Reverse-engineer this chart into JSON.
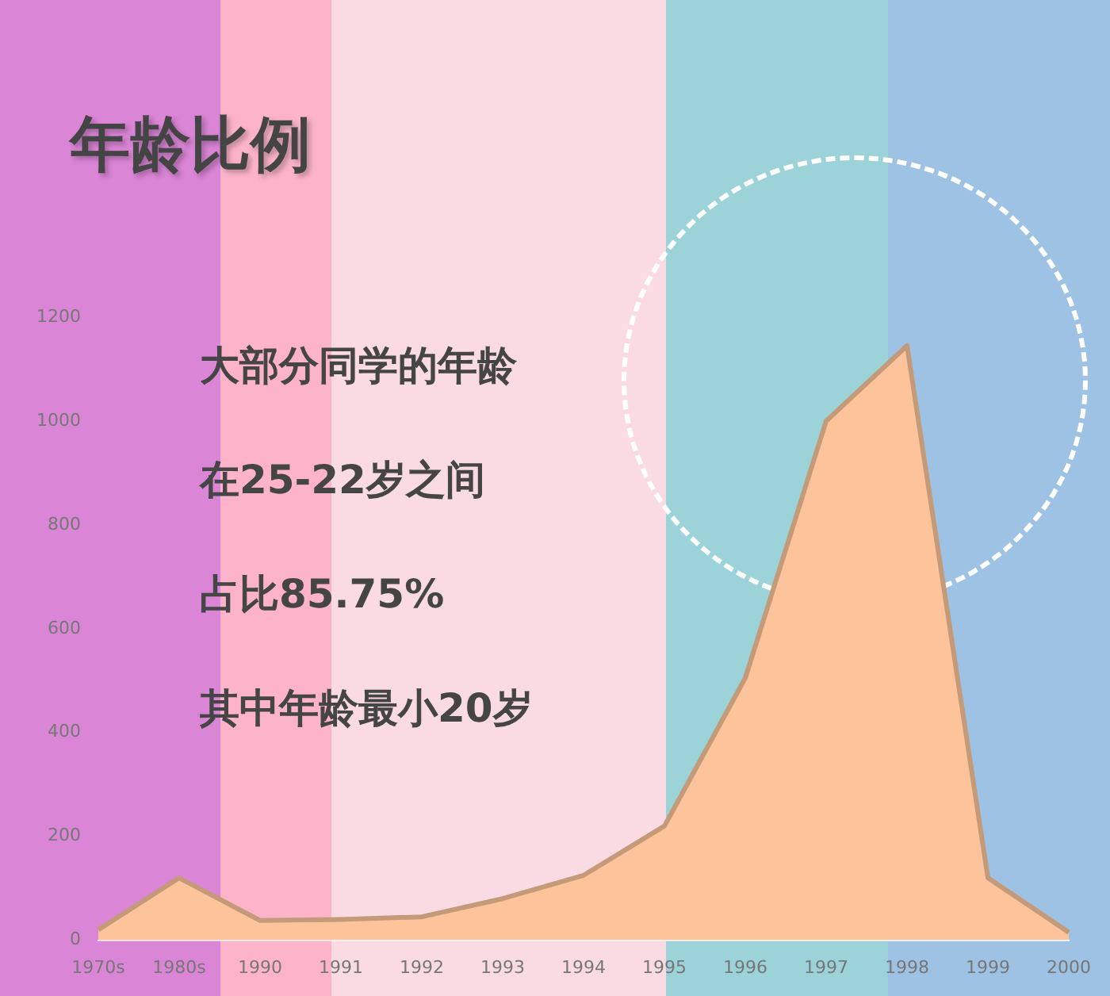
{
  "chart_data": {
    "type": "area",
    "title": "年龄比例",
    "annotations": [
      "大部分同学的年龄",
      "在25-22岁之间",
      "占比85.75%",
      "其中年龄最小20岁"
    ],
    "categories": [
      "1970s",
      "1980s",
      "1990",
      "1991",
      "1992",
      "1993",
      "1994",
      "1995",
      "1996",
      "1997",
      "1998",
      "1999",
      "2000"
    ],
    "series": [
      {
        "color": "#fdc49c",
        "values": [
          20,
          120,
          38,
          40,
          45,
          80,
          125,
          220,
          505,
          1000,
          1145,
          120,
          15
        ]
      }
    ],
    "ylim": [
      0,
      1200
    ],
    "yticks": [
      0,
      200,
      400,
      600,
      800,
      1000,
      1200
    ],
    "grid": false,
    "legend": false
  }
}
